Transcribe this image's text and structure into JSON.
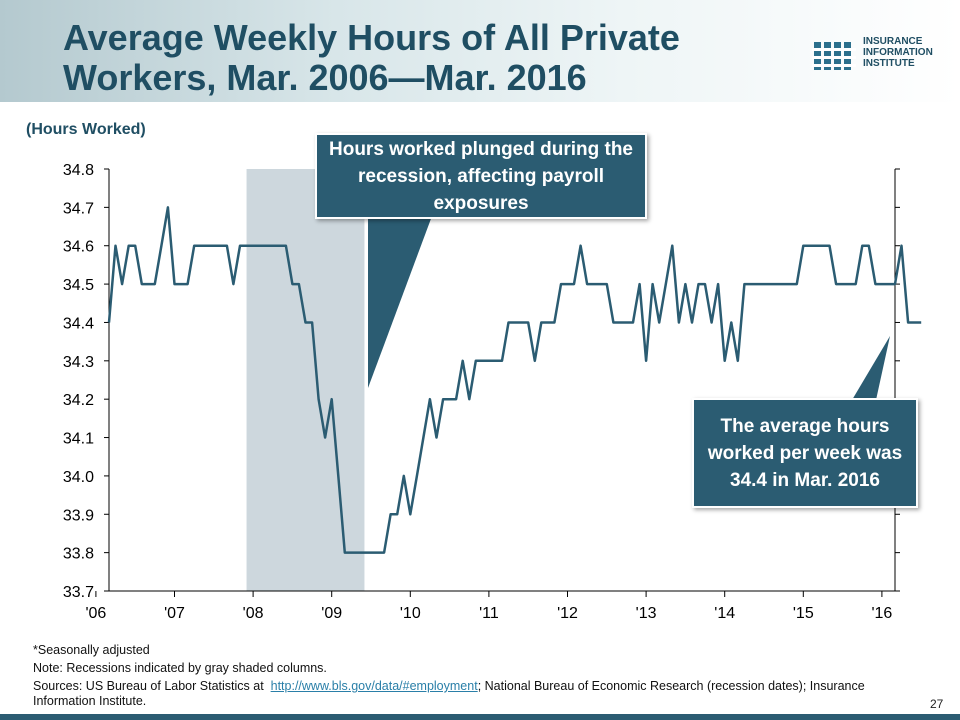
{
  "slide": {
    "title": "Average Weekly Hours of All Private Workers, Mar. 2006—Mar. 2016",
    "logo_text": [
      "INSURANCE",
      "INFORMATION",
      "INSTITUTE"
    ],
    "callout_recession": "Hours worked plunged during the recession, affecting payroll exposures",
    "callout_latest": "The average hours worked per week was 34.4 in Mar. 2016",
    "note_adjusted": "*Seasonally adjusted",
    "note_recessions": "Note: Recessions indicated by gray shaded columns.",
    "sources_prefix": "Sources: US Bureau of Labor Statistics at",
    "sources_link": "http://www.bls.gov/data/#employment",
    "sources_suffix": ";   National Bureau of Economic Research (recession dates); Insurance Information Institute.",
    "page_number": "27",
    "colors": {
      "title": "#1f4e63",
      "line": "#2b5c72",
      "recession": "#cdd7dd",
      "callout": "#2b5c72"
    }
  },
  "chart_data": {
    "type": "line",
    "title": "",
    "xlabel": "",
    "ylabel": "(Hours Worked)",
    "ylim": [
      33.7,
      34.8
    ],
    "yticks": [
      "34.8",
      "34.7",
      "34.6",
      "34.5",
      "34.4",
      "34.3",
      "34.2",
      "34.1",
      "34.0",
      "33.9",
      "33.8",
      "33.7"
    ],
    "xticks": [
      "'06",
      "'07",
      "'08",
      "'09",
      "'10",
      "'11",
      "'12",
      "'13",
      "'14",
      "'15",
      "'16"
    ],
    "x_start": "2006-03",
    "x_end": "2016-03",
    "grid": false,
    "recession": {
      "start": "2007-12",
      "end": "2009-06"
    },
    "series": [
      {
        "values": [
          34.4,
          34.6,
          34.5,
          34.6,
          34.6,
          34.5,
          34.5,
          34.5,
          34.6,
          34.7,
          34.5,
          34.5,
          34.5,
          34.6,
          34.6,
          34.6,
          34.6,
          34.6,
          34.6,
          34.5,
          34.6,
          34.6,
          34.6,
          34.6,
          34.6,
          34.6,
          34.6,
          34.6,
          34.5,
          34.5,
          34.4,
          34.4,
          34.2,
          34.1,
          34.2,
          34.0,
          33.8,
          33.8,
          33.8,
          33.8,
          33.8,
          33.8,
          33.8,
          33.9,
          33.9,
          34.0,
          33.9,
          34.0,
          34.1,
          34.2,
          34.1,
          34.2,
          34.2,
          34.2,
          34.3,
          34.2,
          34.3,
          34.3,
          34.3,
          34.3,
          34.3,
          34.4,
          34.4,
          34.4,
          34.4,
          34.3,
          34.4,
          34.4,
          34.4,
          34.5,
          34.5,
          34.5,
          34.6,
          34.5,
          34.5,
          34.5,
          34.5,
          34.4,
          34.4,
          34.4,
          34.4,
          34.5,
          34.3,
          34.5,
          34.4,
          34.5,
          34.6,
          34.4,
          34.5,
          34.4,
          34.5,
          34.5,
          34.4,
          34.5,
          34.3,
          34.4,
          34.3,
          34.5,
          34.5,
          34.5,
          34.5,
          34.5,
          34.5,
          34.5,
          34.5,
          34.5,
          34.6,
          34.6,
          34.6,
          34.6,
          34.6,
          34.5,
          34.5,
          34.5,
          34.5,
          34.6,
          34.6,
          34.5,
          34.5,
          34.5,
          34.5,
          34.6,
          34.4,
          34.4,
          34.4
        ]
      }
    ]
  }
}
